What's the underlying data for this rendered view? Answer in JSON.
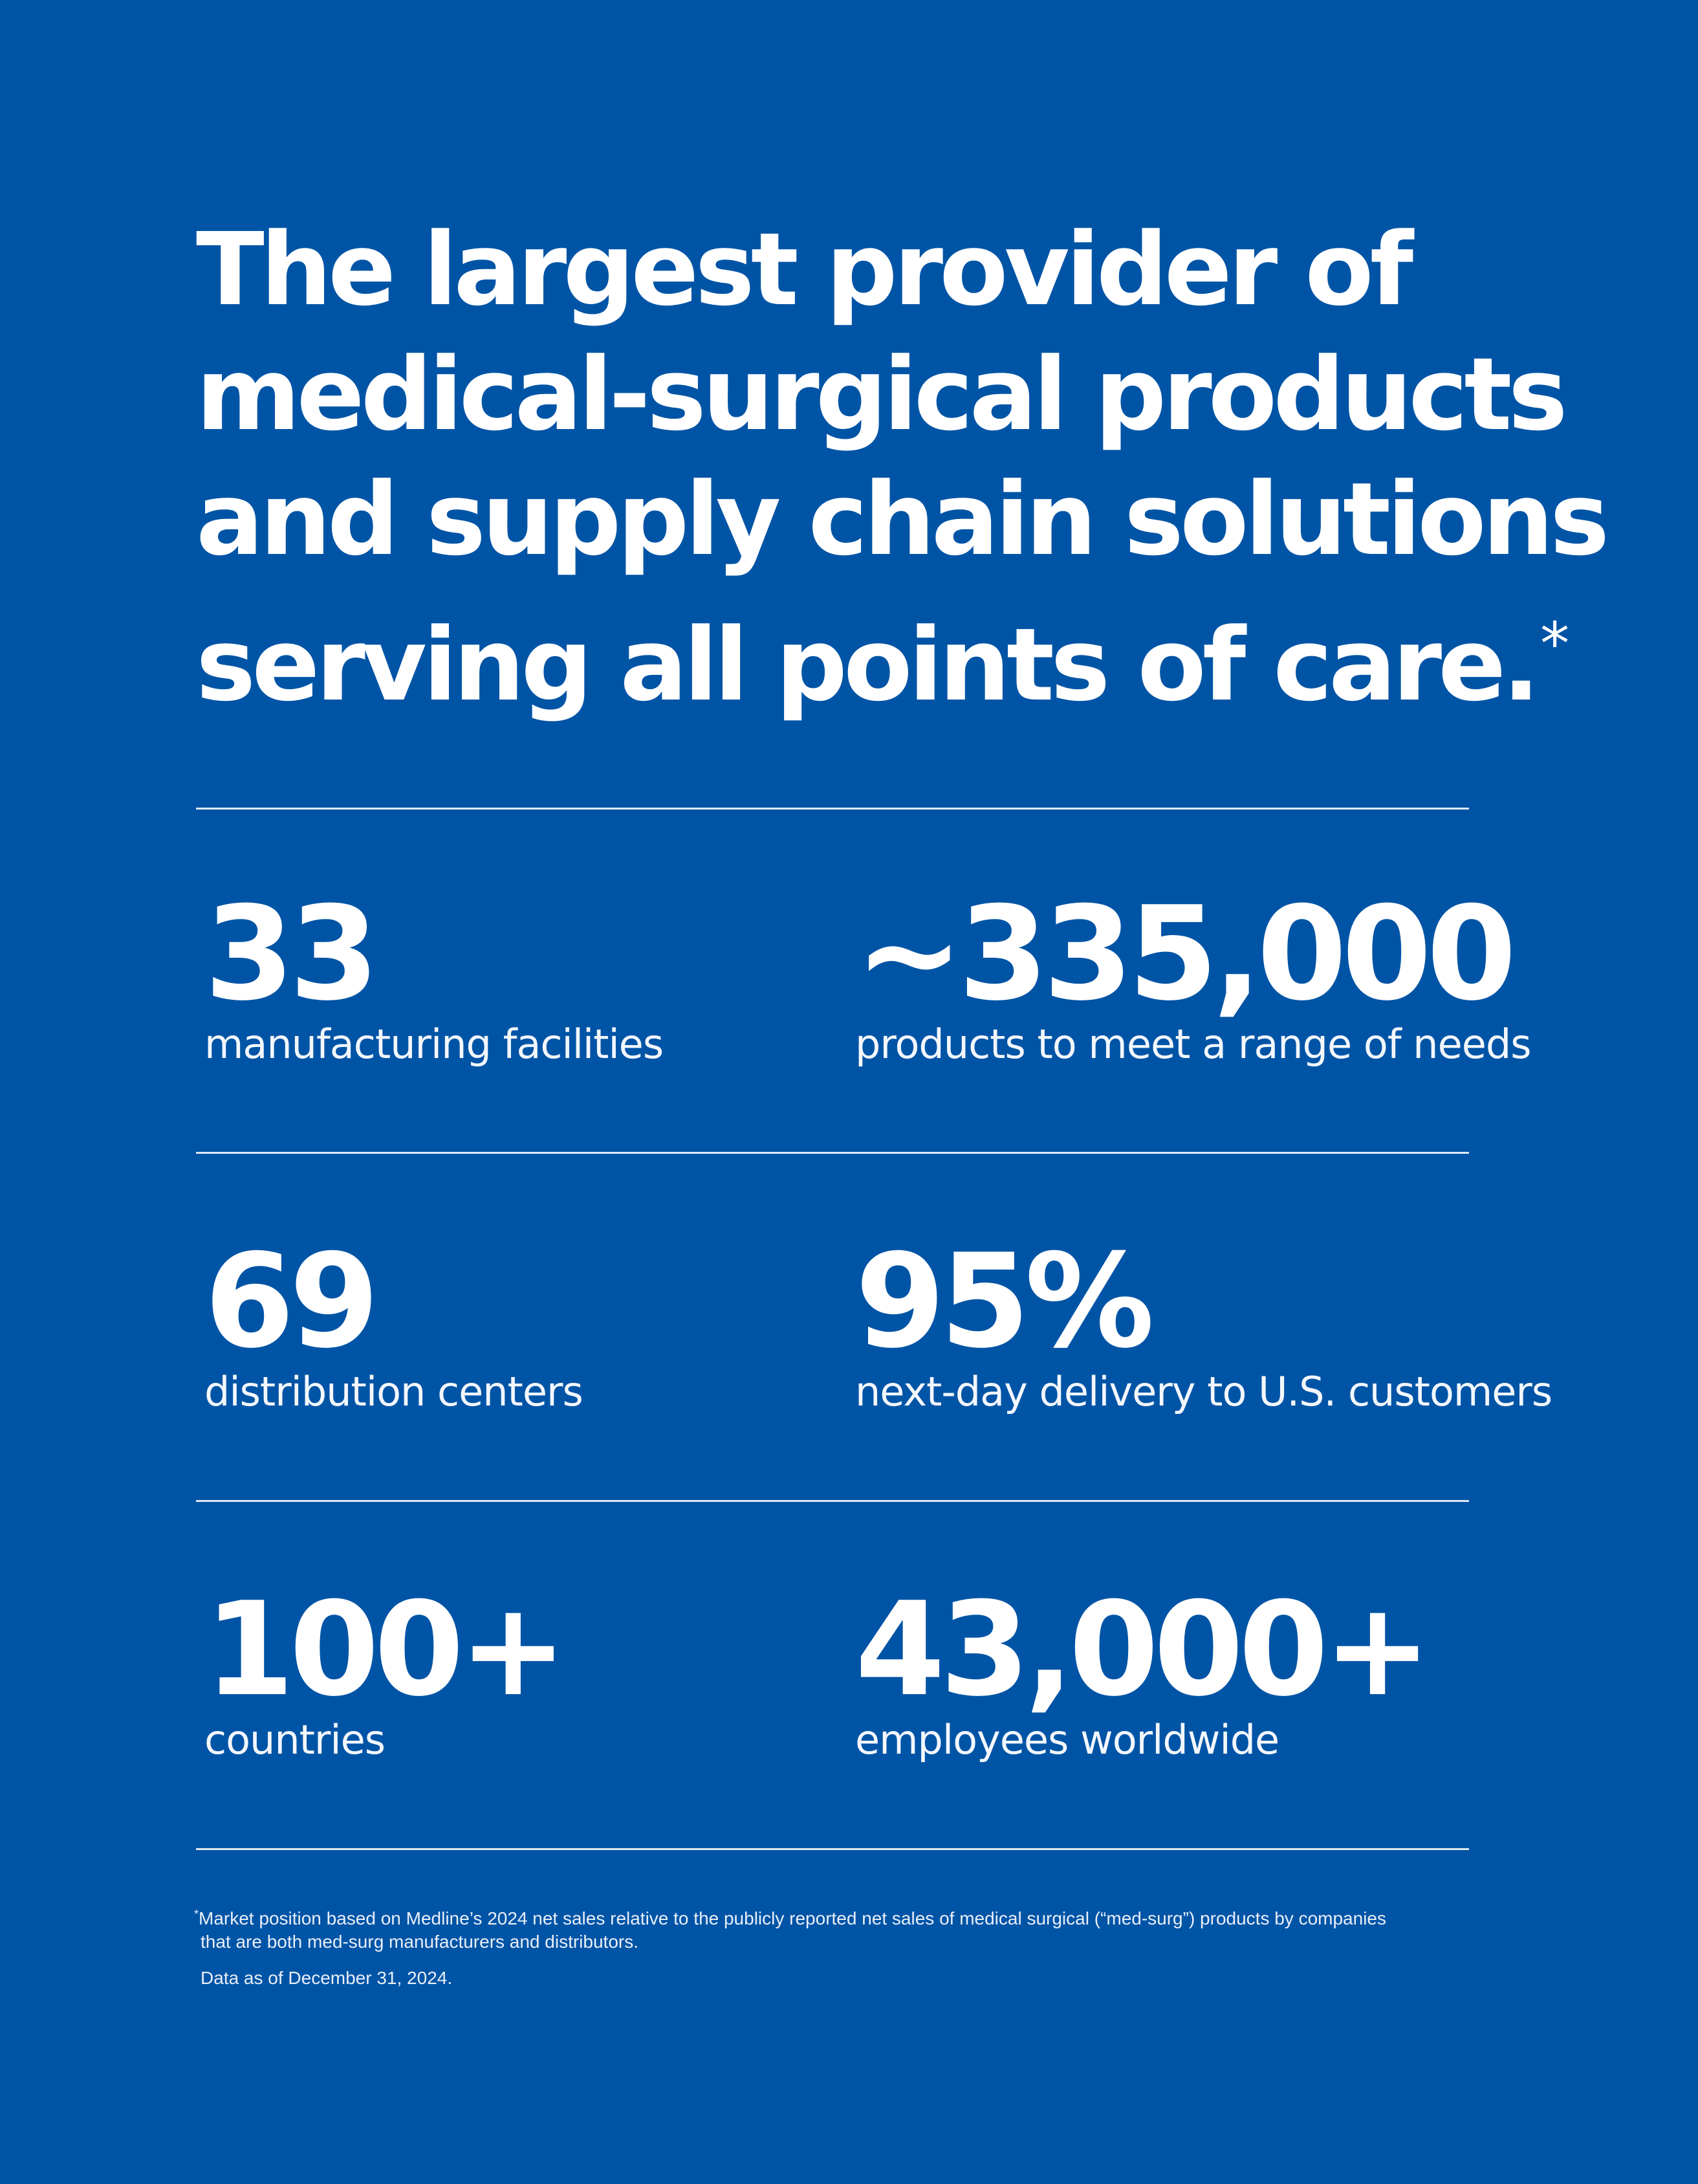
{
  "headline": {
    "lines": [
      "The largest provider of",
      "medical-surgical products",
      "and supply chain solutions",
      "serving all points of care."
    ],
    "asterisk": "*"
  },
  "stats": [
    {
      "value": "33",
      "label": "manufacturing facilities"
    },
    {
      "value": "~335,000",
      "label": "products to meet a range of needs"
    },
    {
      "value": "69",
      "label": "distribution centers"
    },
    {
      "value": "95%",
      "label": "next-day delivery to U.S. customers"
    },
    {
      "value": "100+",
      "label": "countries"
    },
    {
      "value": "43,000+",
      "label": "employees worldwide"
    }
  ],
  "footnote": {
    "mark": "*",
    "line1": "Market position based on Medline’s 2024 net sales relative to the publicly reported net sales of medical surgical (“med-surg”) products by companies",
    "line2": "that are both med-surg manufacturers and distributors.",
    "data_date": "Data as of December 31, 2024."
  },
  "colors": {
    "background": "#0054a6",
    "text": "#ffffff",
    "rule": "#dfe9f5"
  }
}
